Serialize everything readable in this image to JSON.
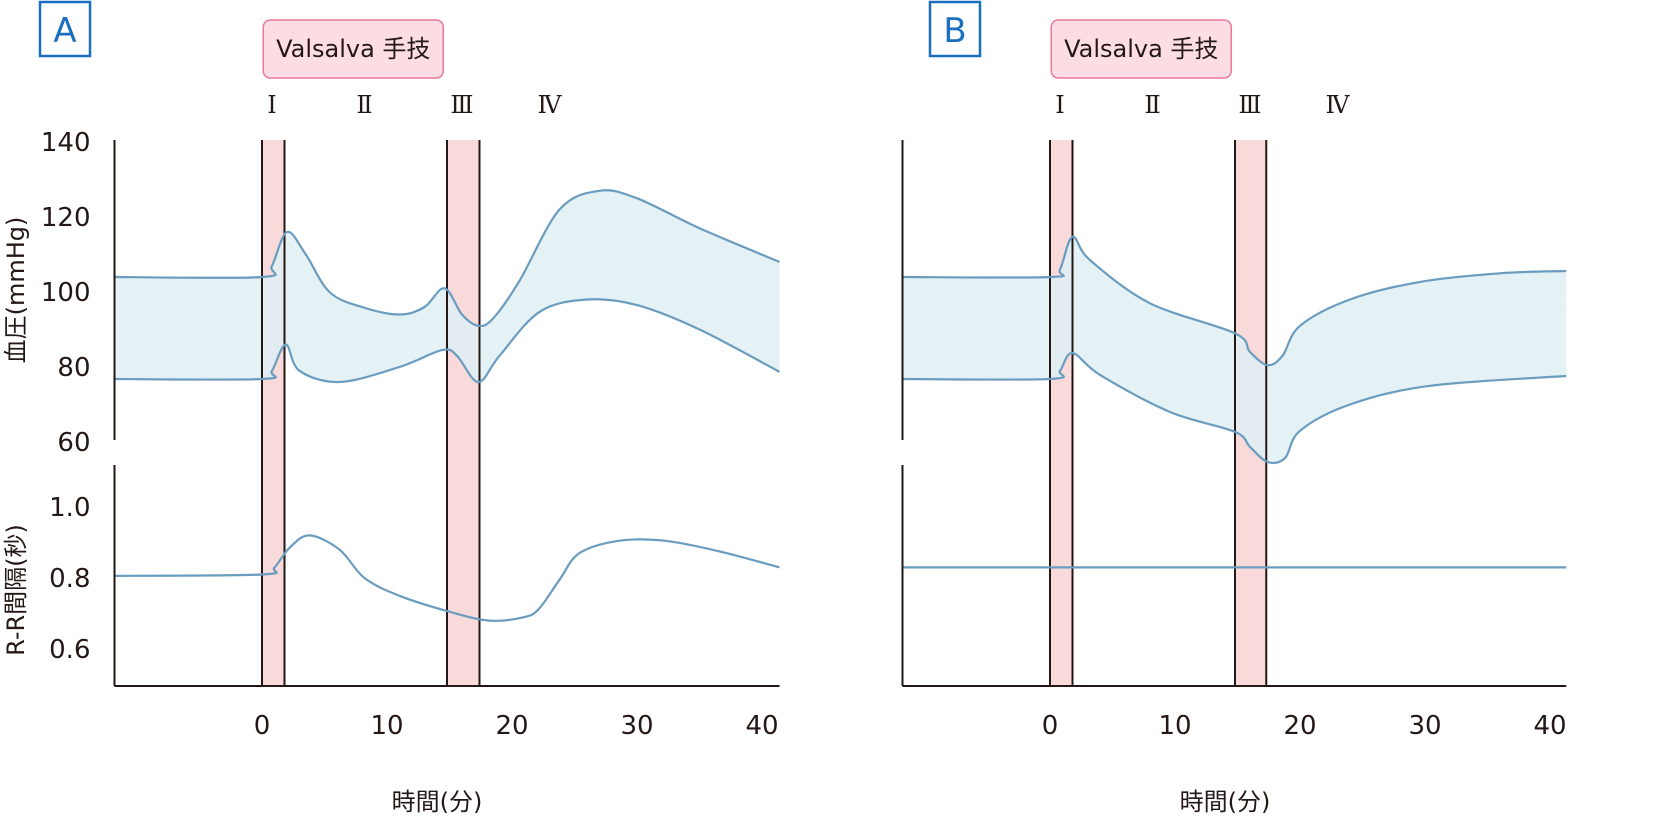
{
  "colors": {
    "panel_label": "#1a6fbf",
    "band": "#f9dada",
    "badge_fill": "#fcdde3",
    "badge_border": "#e87a9a",
    "curve": "#6a9cbf",
    "range_fill": "#dff0f4",
    "axis": "#231815"
  },
  "chart_data": [
    {
      "type": "area",
      "panel": "A",
      "badge": "Valsalva 手技",
      "phases": [
        {
          "label": "Ⅰ",
          "t": 0.8
        },
        {
          "label": "Ⅱ",
          "t": 8.2
        },
        {
          "label": "Ⅲ",
          "t": 16
        },
        {
          "label": "Ⅳ",
          "t": 23
        }
      ],
      "bands": [
        [
          0,
          1.8
        ],
        [
          14.8,
          17.4
        ]
      ],
      "xlabel": "時間(分)",
      "x_ticks": [
        {
          "v": 0,
          "label": "0"
        },
        {
          "v": 10,
          "label": "10"
        },
        {
          "v": 20,
          "label": "20"
        },
        {
          "v": 30,
          "label": "30"
        },
        {
          "v": 40,
          "label": "40"
        }
      ],
      "xlim": [
        -11.8,
        41.4
      ],
      "bp": {
        "ylabel": "血圧(mmHg)",
        "ylim": [
          60,
          140
        ],
        "ticks": [
          {
            "v": 140,
            "label": "140"
          },
          {
            "v": 120,
            "label": "120"
          },
          {
            "v": 100,
            "label": "100"
          },
          {
            "v": 80,
            "label": "80"
          },
          {
            "v": 60,
            "label": "60"
          }
        ],
        "upper": [
          [
            -11.8,
            104
          ],
          [
            0,
            104
          ],
          [
            0.8,
            107
          ],
          [
            2,
            116
          ],
          [
            3.5,
            110
          ],
          [
            5.4,
            100
          ],
          [
            8,
            96
          ],
          [
            11,
            94
          ],
          [
            13,
            96
          ],
          [
            14.6,
            101
          ],
          [
            16,
            94
          ],
          [
            17.3,
            91
          ],
          [
            18.5,
            93
          ],
          [
            20.6,
            103
          ],
          [
            23.8,
            122
          ],
          [
            27,
            127
          ],
          [
            30,
            125
          ],
          [
            35,
            117
          ],
          [
            41.4,
            108
          ]
        ],
        "lower": [
          [
            -11.8,
            76.8
          ],
          [
            0,
            76.8
          ],
          [
            0.8,
            79
          ],
          [
            1.9,
            86
          ],
          [
            3,
            79
          ],
          [
            6.2,
            76
          ],
          [
            11,
            80
          ],
          [
            14.4,
            84.5
          ],
          [
            15.6,
            83
          ],
          [
            17.3,
            76
          ],
          [
            19,
            83
          ],
          [
            22.2,
            94.7
          ],
          [
            26,
            98
          ],
          [
            30,
            96.5
          ],
          [
            35,
            90
          ],
          [
            41.4,
            78.7
          ]
        ]
      },
      "rr": {
        "ylabel": "R-R間隔(秒)",
        "ylim": [
          0.5,
          1.05
        ],
        "ticks": [
          {
            "v": 1.0,
            "label": "1.0"
          },
          {
            "v": 0.8,
            "label": "0.8"
          },
          {
            "v": 0.6,
            "label": "0.6"
          }
        ],
        "values": [
          [
            -11.8,
            0.806
          ],
          [
            0,
            0.81
          ],
          [
            1,
            0.83
          ],
          [
            2.2,
            0.885
          ],
          [
            3.8,
            0.92
          ],
          [
            6.2,
            0.88
          ],
          [
            8.2,
            0.8
          ],
          [
            11,
            0.75
          ],
          [
            15,
            0.705
          ],
          [
            18.2,
            0.68
          ],
          [
            21,
            0.69
          ],
          [
            22.2,
            0.715
          ],
          [
            23.8,
            0.795
          ],
          [
            25.4,
            0.87
          ],
          [
            28.6,
            0.905
          ],
          [
            32.2,
            0.905
          ],
          [
            36.6,
            0.875
          ],
          [
            41.4,
            0.83
          ]
        ]
      }
    },
    {
      "type": "area",
      "panel": "B",
      "badge": "Valsalva 手技",
      "phases": [
        {
          "label": "Ⅰ",
          "t": 0.8
        },
        {
          "label": "Ⅱ",
          "t": 8.2
        },
        {
          "label": "Ⅲ",
          "t": 16
        },
        {
          "label": "Ⅳ",
          "t": 23
        }
      ],
      "bands": [
        [
          0,
          1.8
        ],
        [
          14.8,
          17.3
        ]
      ],
      "xlabel": "時間(分)",
      "x_ticks": [
        {
          "v": 0,
          "label": "0"
        },
        {
          "v": 10,
          "label": "10"
        },
        {
          "v": 20,
          "label": "20"
        },
        {
          "v": 30,
          "label": "30"
        },
        {
          "v": 40,
          "label": "40"
        }
      ],
      "xlim": [
        -11.8,
        41.3
      ],
      "bp": {
        "ylabel": "",
        "ylim": [
          60,
          140
        ],
        "ticks": [],
        "upper": [
          [
            -11.8,
            104
          ],
          [
            0,
            104
          ],
          [
            0.8,
            106
          ],
          [
            1.8,
            114.7
          ],
          [
            3.2,
            108.5
          ],
          [
            8,
            97
          ],
          [
            14.8,
            89
          ],
          [
            16,
            84
          ],
          [
            17.4,
            80.5
          ],
          [
            18.6,
            83
          ],
          [
            20,
            91
          ],
          [
            24,
            98
          ],
          [
            29.6,
            102.7
          ],
          [
            36,
            105
          ],
          [
            41.3,
            105.6
          ]
        ],
        "lower": [
          [
            -11.8,
            76.8
          ],
          [
            0,
            76.8
          ],
          [
            0.8,
            79
          ],
          [
            1.8,
            83.7
          ],
          [
            4,
            77.9
          ],
          [
            9.6,
            68
          ],
          [
            14.8,
            62.7
          ],
          [
            16,
            58.7
          ],
          [
            17.4,
            54.7
          ],
          [
            18.8,
            55.7
          ],
          [
            20,
            63
          ],
          [
            24,
            70
          ],
          [
            30.4,
            75
          ],
          [
            41.3,
            77.6
          ]
        ]
      },
      "rr": {
        "ylabel": "",
        "ylim": [
          0.5,
          1.05
        ],
        "ticks": [],
        "values": [
          [
            -11.8,
            0.83
          ],
          [
            41.3,
            0.83
          ]
        ]
      }
    }
  ]
}
